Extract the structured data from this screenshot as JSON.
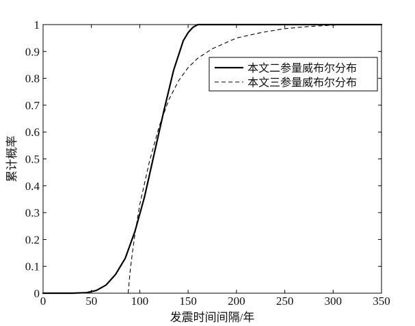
{
  "chart_data": {
    "type": "line",
    "title": "",
    "xlabel": "发震时间间隔/年",
    "ylabel": "累计概率",
    "xlim": [
      0,
      350
    ],
    "ylim": [
      0,
      1
    ],
    "xticks": [
      0,
      50,
      100,
      150,
      200,
      250,
      300,
      350
    ],
    "yticks": [
      0,
      0.1,
      0.2,
      0.3,
      0.4,
      0.5,
      0.6,
      0.7,
      0.8,
      0.9,
      1
    ],
    "grid": false,
    "legend_position": "top-right",
    "series": [
      {
        "name": "本文二参量威布尔分布",
        "style": "solid",
        "color": "#000000",
        "x": [
          0,
          30,
          45,
          55,
          65,
          75,
          85,
          95,
          105,
          115,
          125,
          135,
          145,
          150,
          155,
          160,
          165,
          350
        ],
        "y": [
          0,
          0,
          0.002,
          0.01,
          0.03,
          0.07,
          0.13,
          0.23,
          0.36,
          0.52,
          0.68,
          0.83,
          0.94,
          0.97,
          0.99,
          1.0,
          1.0,
          1.0
        ]
      },
      {
        "name": "本文三参量威布尔分布",
        "style": "dashed",
        "color": "#000000",
        "x": [
          88,
          89,
          90,
          92,
          95,
          100,
          110,
          120,
          130,
          140,
          150,
          160,
          175,
          200,
          225,
          250,
          275,
          300,
          315
        ],
        "y": [
          0,
          0.04,
          0.08,
          0.14,
          0.22,
          0.33,
          0.49,
          0.62,
          0.72,
          0.79,
          0.84,
          0.875,
          0.91,
          0.95,
          0.97,
          0.985,
          0.993,
          0.998,
          1.0
        ]
      }
    ]
  }
}
